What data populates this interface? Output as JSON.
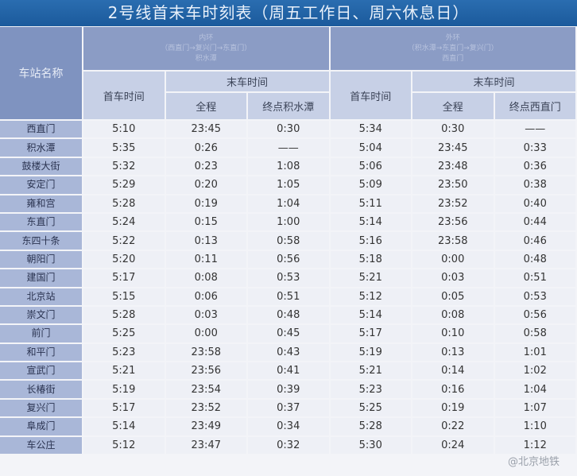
{
  "title": "2号线首末车时刻表（周五工作日、周六休息日）",
  "headers": {
    "station": "车站名称",
    "inner": {
      "line1": "内环",
      "line2": "（西直门→复兴门→东直门）",
      "line3": "积水潭"
    },
    "outer": {
      "line1": "外环",
      "line2": "（积水潭→东直门→复兴门）",
      "line3": "西直门"
    },
    "first": "首车时间",
    "last": "末车时间",
    "full": "全程",
    "inner_terminal": "终点积水潭",
    "outer_terminal": "终点西直门"
  },
  "rows": [
    [
      "西直门",
      "5:10",
      "23:45",
      "0:30",
      "5:34",
      "0:30",
      "——"
    ],
    [
      "积水潭",
      "5:35",
      "0:26",
      "——",
      "5:04",
      "23:45",
      "0:33"
    ],
    [
      "鼓楼大街",
      "5:32",
      "0:23",
      "1:08",
      "5:06",
      "23:48",
      "0:36"
    ],
    [
      "安定门",
      "5:29",
      "0:20",
      "1:05",
      "5:09",
      "23:50",
      "0:38"
    ],
    [
      "雍和宫",
      "5:28",
      "0:19",
      "1:04",
      "5:11",
      "23:52",
      "0:40"
    ],
    [
      "东直门",
      "5:24",
      "0:15",
      "1:00",
      "5:14",
      "23:56",
      "0:44"
    ],
    [
      "东四十条",
      "5:22",
      "0:13",
      "0:58",
      "5:16",
      "23:58",
      "0:46"
    ],
    [
      "朝阳门",
      "5:20",
      "0:11",
      "0:56",
      "5:18",
      "0:00",
      "0:48"
    ],
    [
      "建国门",
      "5:17",
      "0:08",
      "0:53",
      "5:21",
      "0:03",
      "0:51"
    ],
    [
      "北京站",
      "5:15",
      "0:06",
      "0:51",
      "5:12",
      "0:05",
      "0:53"
    ],
    [
      "崇文门",
      "5:28",
      "0:03",
      "0:48",
      "5:14",
      "0:08",
      "0:56"
    ],
    [
      "前门",
      "5:25",
      "0:00",
      "0:45",
      "5:17",
      "0:10",
      "0:58"
    ],
    [
      "和平门",
      "5:23",
      "23:58",
      "0:43",
      "5:19",
      "0:13",
      "1:01"
    ],
    [
      "宣武门",
      "5:21",
      "23:56",
      "0:41",
      "5:21",
      "0:14",
      "1:02"
    ],
    [
      "长椿街",
      "5:19",
      "23:54",
      "0:39",
      "5:23",
      "0:16",
      "1:04"
    ],
    [
      "复兴门",
      "5:17",
      "23:52",
      "0:37",
      "5:25",
      "0:19",
      "1:07"
    ],
    [
      "阜成门",
      "5:14",
      "23:49",
      "0:34",
      "5:28",
      "0:22",
      "1:10"
    ],
    [
      "车公庄",
      "5:12",
      "23:47",
      "0:32",
      "5:30",
      "0:24",
      "1:12"
    ]
  ],
  "watermark": "@北京地铁"
}
